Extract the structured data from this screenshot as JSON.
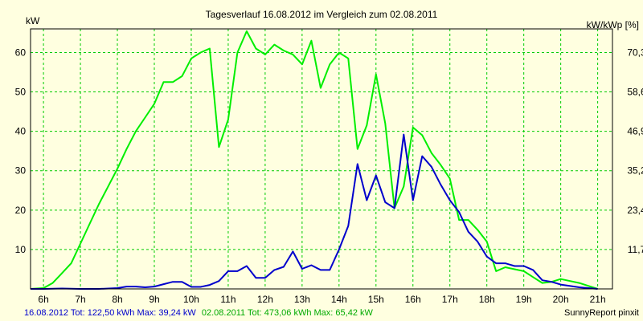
{
  "chart_data": {
    "type": "line",
    "title": "Tagesverlauf 16.08.2012 im Vergleich zum 02.08.2011",
    "ylabel_left": "kW",
    "ylabel_right": "kW/kWp [%]",
    "x_tick_labels": [
      "6h",
      "7h",
      "8h",
      "9h",
      "10h",
      "11h",
      "12h",
      "13h",
      "14h",
      "15h",
      "16h",
      "17h",
      "18h",
      "19h",
      "20h",
      "21h"
    ],
    "xlim": [
      5.65,
      21.4
    ],
    "ylim": [
      0,
      66
    ],
    "y_ticks_left": [
      {
        "value": 10,
        "label": "10"
      },
      {
        "value": 20,
        "label": "20"
      },
      {
        "value": 30,
        "label": "30"
      },
      {
        "value": 40,
        "label": "40"
      },
      {
        "value": 50,
        "label": "50"
      },
      {
        "value": 60,
        "label": "60"
      }
    ],
    "y_ticks_right": [
      {
        "value": 10,
        "label": "11,7"
      },
      {
        "value": 20,
        "label": "23,4"
      },
      {
        "value": 30,
        "label": "35,2"
      },
      {
        "value": 40,
        "label": "46,9"
      },
      {
        "value": 50,
        "label": "58,6"
      },
      {
        "value": 60,
        "label": "70,3"
      }
    ],
    "grid": true,
    "series": [
      {
        "color": "#0000cc",
        "x": [
          5.65,
          6.0,
          6.5,
          7.0,
          7.5,
          8.0,
          8.25,
          8.5,
          8.75,
          9.0,
          9.25,
          9.5,
          9.75,
          10.0,
          10.25,
          10.5,
          10.75,
          11.0,
          11.25,
          11.5,
          11.75,
          12.0,
          12.25,
          12.5,
          12.75,
          13.0,
          13.25,
          13.5,
          13.75,
          14.0,
          14.25,
          14.5,
          14.75,
          15.0,
          15.25,
          15.5,
          15.75,
          16.0,
          16.25,
          16.5,
          16.75,
          17.0,
          17.25,
          17.5,
          17.75,
          18.0,
          18.25,
          18.5,
          18.75,
          19.0,
          19.25,
          19.5,
          19.75,
          20.0,
          20.5,
          21.0
        ],
        "y": [
          0,
          0,
          0.1,
          0,
          0,
          0.2,
          0.6,
          0.6,
          0.4,
          0.6,
          1.2,
          1.8,
          1.8,
          0.5,
          0.5,
          1.0,
          2.0,
          4.5,
          4.5,
          5.8,
          2.8,
          2.8,
          4.8,
          5.6,
          9.5,
          5.1,
          6.0,
          4.8,
          4.8,
          10.0,
          16.0,
          31.7,
          22.5,
          28.8,
          22.0,
          20.5,
          39.2,
          22.5,
          33.7,
          31.0,
          26.5,
          22.5,
          19.5,
          14.5,
          12.0,
          8.2,
          6.5,
          6.5,
          5.8,
          5.8,
          4.8,
          2.2,
          1.8,
          1.1,
          0.4,
          0
        ]
      },
      {
        "color": "#00ee00",
        "x": [
          5.65,
          6.0,
          6.25,
          6.5,
          6.75,
          7.0,
          7.25,
          7.5,
          7.75,
          8.0,
          8.25,
          8.5,
          8.75,
          9.0,
          9.25,
          9.5,
          9.75,
          10.0,
          10.25,
          10.5,
          10.75,
          11.0,
          11.25,
          11.5,
          11.75,
          12.0,
          12.25,
          12.5,
          12.75,
          13.0,
          13.25,
          13.5,
          13.75,
          14.0,
          14.25,
          14.5,
          14.75,
          15.0,
          15.25,
          15.5,
          15.75,
          16.0,
          16.25,
          16.5,
          16.75,
          17.0,
          17.25,
          17.5,
          17.75,
          18.0,
          18.25,
          18.5,
          18.75,
          19.0,
          19.25,
          19.5,
          19.75,
          20.0,
          20.5,
          21.0
        ],
        "y": [
          0,
          0.2,
          1.5,
          4.0,
          6.5,
          11.5,
          16.5,
          21.5,
          26.0,
          30.5,
          35.5,
          40.0,
          43.5,
          47.0,
          52.5,
          52.5,
          54.0,
          58.5,
          60.0,
          61.0,
          36.0,
          43.0,
          60.0,
          65.4,
          61.0,
          59.5,
          62.0,
          60.5,
          59.5,
          57.0,
          63.0,
          51.0,
          57.0,
          60.0,
          58.5,
          35.5,
          41.5,
          54.5,
          42.0,
          20.5,
          26.0,
          41.0,
          39.0,
          34.5,
          31.5,
          28.0,
          17.5,
          17.5,
          15.0,
          12.0,
          4.5,
          5.5,
          5.0,
          4.5,
          3.0,
          1.5,
          1.8,
          2.5,
          1.5,
          0
        ]
      }
    ],
    "footer": {
      "blue_text": "16.08.2012 Tot: 122,50 kWh Max: 39,24 kW",
      "green_text": "02.08.2011 Tot: 473,06 kWh Max: 65,42 kW",
      "credit": "SunnyReport pinxit"
    }
  }
}
